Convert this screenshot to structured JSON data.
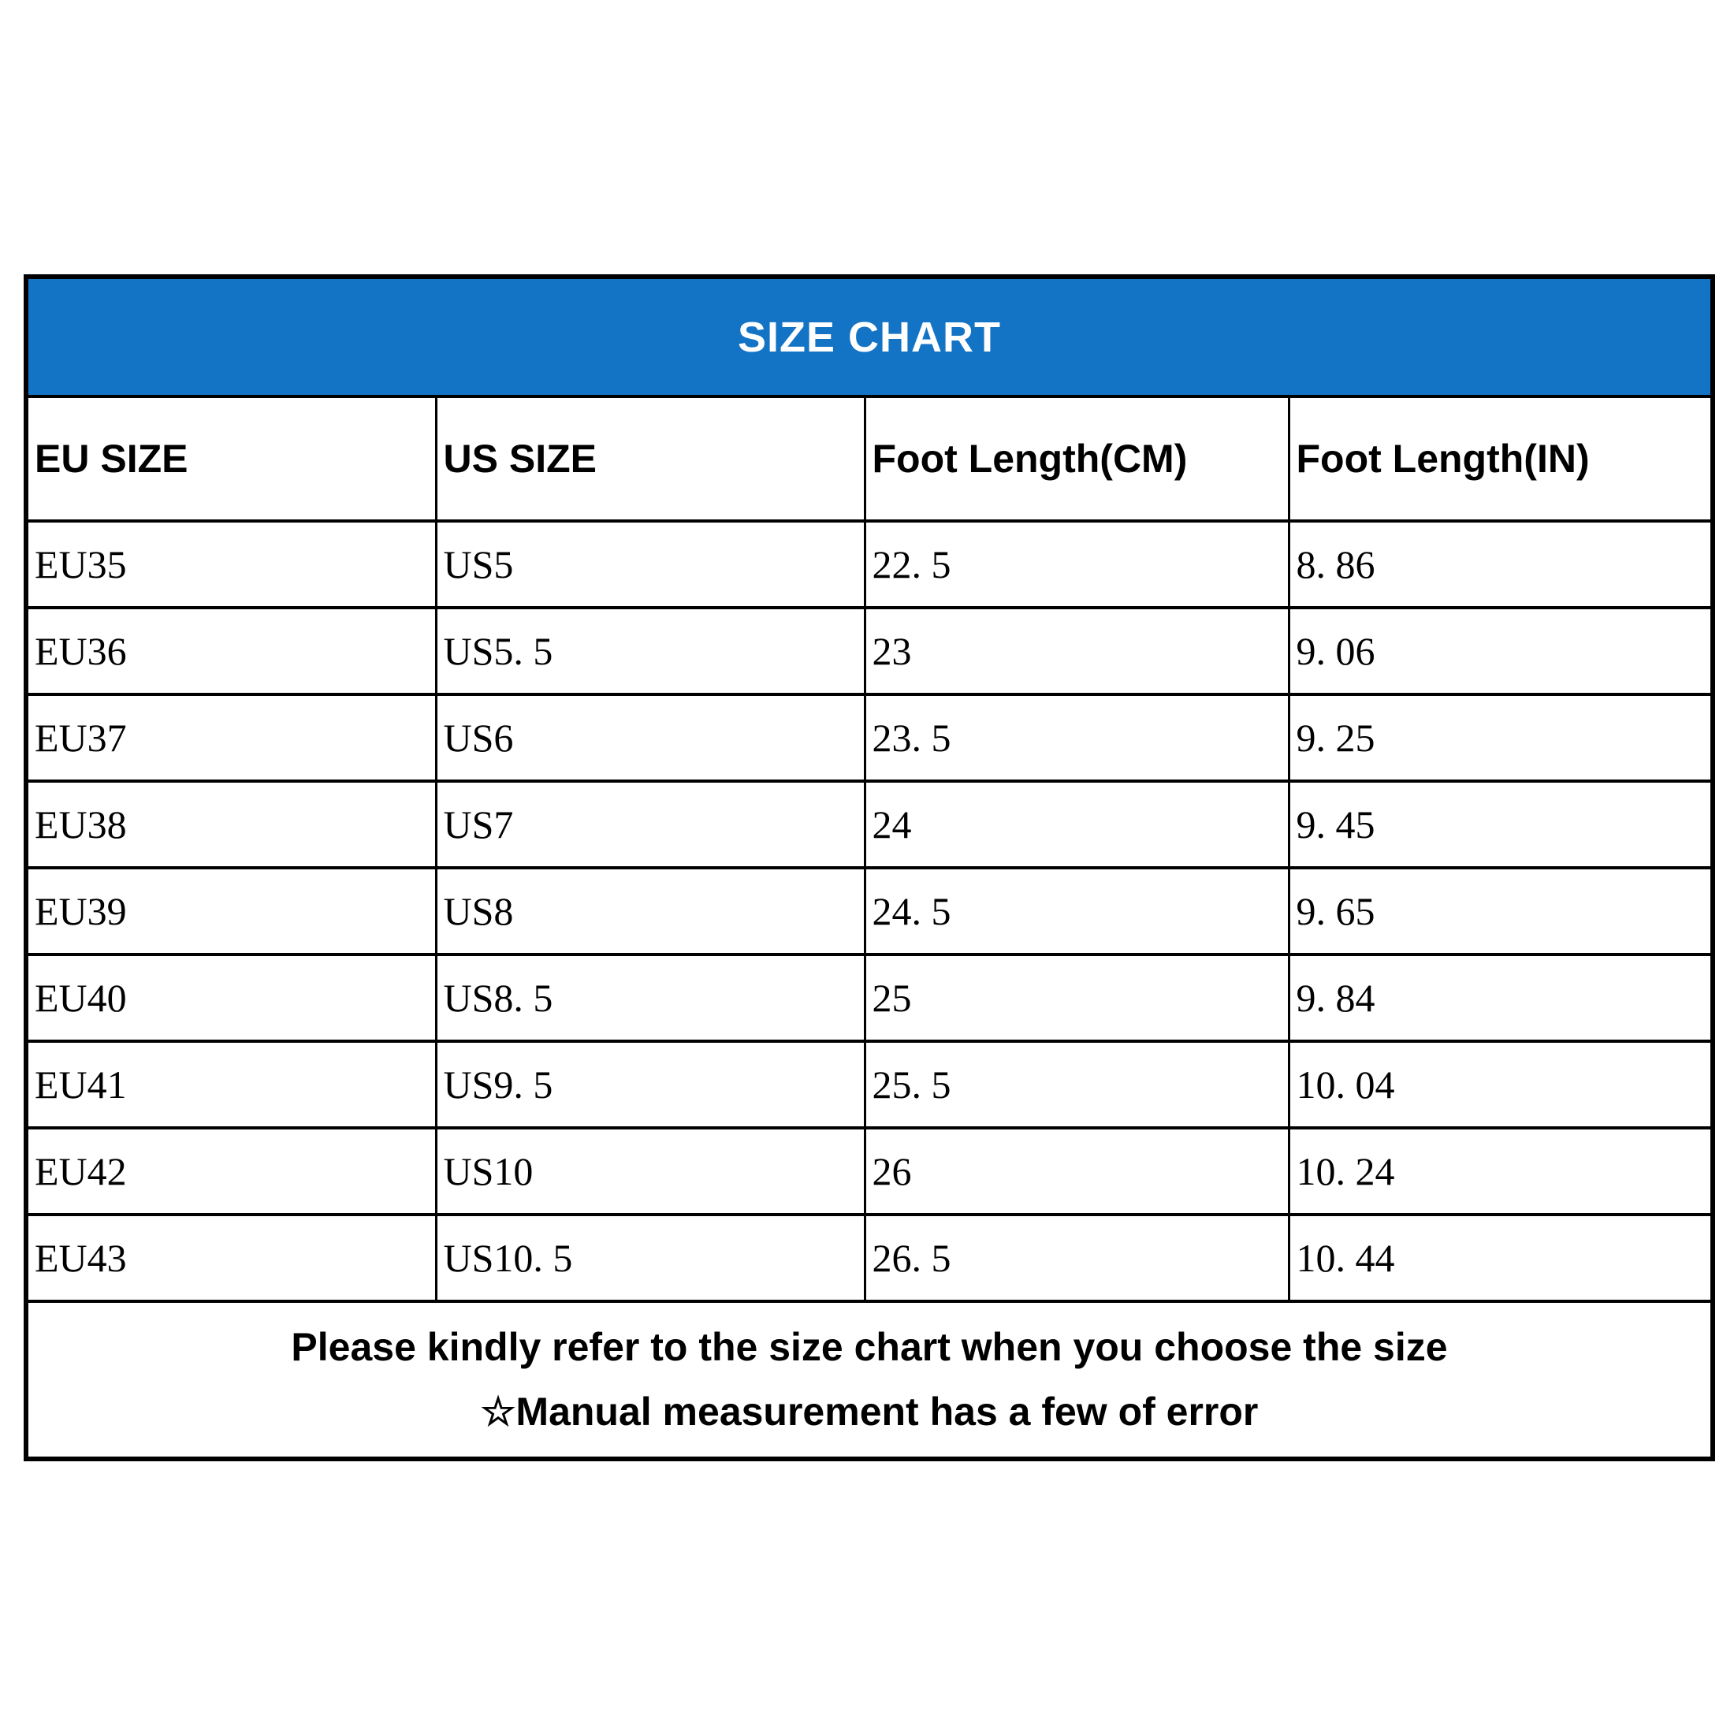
{
  "title": "SIZE CHART",
  "colors": {
    "title_bar_bg": "#1373c4",
    "title_text": "#ffffff",
    "border": "#000000",
    "body_text": "#000000",
    "page_bg": "#ffffff"
  },
  "chart_data": {
    "type": "table",
    "title": "SIZE CHART",
    "columns": [
      "EU SIZE",
      "US SIZE",
      "Foot Length(CM)",
      "Foot Length(IN)"
    ],
    "rows": [
      [
        "EU35",
        "US5",
        "22. 5",
        "8. 86"
      ],
      [
        "EU36",
        "US5. 5",
        "23",
        "9. 06"
      ],
      [
        "EU37",
        "US6",
        "23. 5",
        "9. 25"
      ],
      [
        "EU38",
        "US7",
        "24",
        "9. 45"
      ],
      [
        "EU39",
        "US8",
        "24. 5",
        "9. 65"
      ],
      [
        "EU40",
        "US8. 5",
        "25",
        "9. 84"
      ],
      [
        "EU41",
        "US9. 5",
        "25. 5",
        "10. 04"
      ],
      [
        "EU42",
        "US10",
        "26",
        "10. 24"
      ],
      [
        "EU43",
        "US10. 5",
        "26. 5",
        "10. 44"
      ]
    ],
    "footer": [
      "Please kindly refer to the size chart when you choose the size",
      "☆Manual measurement has a few of error"
    ],
    "layout_hints": {
      "grid": "on",
      "title_position": "top-banner",
      "footer_position": "bottom-merged-row"
    }
  }
}
